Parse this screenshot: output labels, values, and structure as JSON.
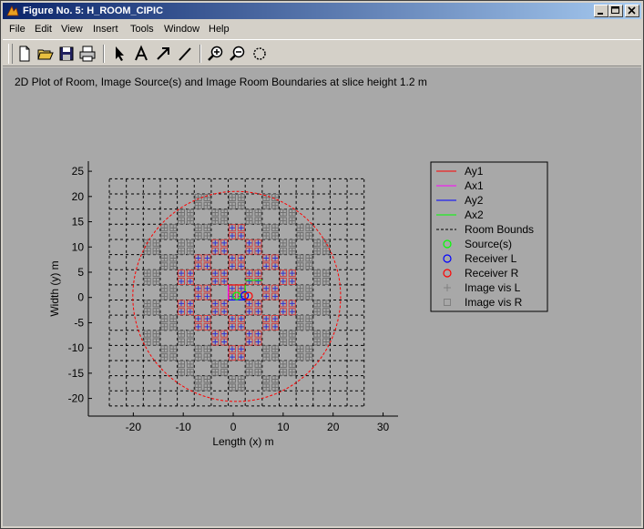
{
  "window": {
    "title": "Figure No. 5: H_ROOM_CIPIC",
    "title_color": "#0a246a"
  },
  "menu": [
    "File",
    "Edit",
    "View",
    "Insert",
    "Tools",
    "Window",
    "Help"
  ],
  "toolbar": {
    "tools": [
      "new-file-icon",
      "open-folder-icon",
      "save-icon",
      "print-icon",
      "select-arrow-icon",
      "insert-text-icon",
      "insert-arrow-icon",
      "insert-line-icon",
      "zoom-in-icon",
      "zoom-out-icon",
      "rotate-icon"
    ]
  },
  "figure": {
    "background": "#a8a8a8"
  },
  "chart_data": {
    "type": "scatter",
    "title": "2D Plot of Room, Image Source(s) and Image Room Boundaries at slice height 1.2 m",
    "xlabel": "Length (x) m",
    "ylabel": "Width (y) m",
    "xlim": [
      -29,
      33
    ],
    "ylim": [
      -23.5,
      27
    ],
    "xticks": [
      -20,
      -10,
      0,
      10,
      20,
      30
    ],
    "yticks": [
      -20,
      -15,
      -10,
      -5,
      0,
      5,
      10,
      15,
      20,
      25
    ],
    "grid": false,
    "legend_position": "outside-right",
    "legend": [
      {
        "label": "Ay1",
        "style": "line",
        "color": "#ff0000"
      },
      {
        "label": "Ax1",
        "style": "line",
        "color": "#ff00ff"
      },
      {
        "label": "Ay2",
        "style": "line",
        "color": "#0000ff"
      },
      {
        "label": "Ax2",
        "style": "line",
        "color": "#00ff00"
      },
      {
        "label": "Room Bounds",
        "style": "dashed",
        "color": "#000000"
      },
      {
        "label": "Source(s)",
        "style": "circle",
        "color": "#00ff00"
      },
      {
        "label": "Receiver L",
        "style": "circle",
        "color": "#0000ff"
      },
      {
        "label": "Receiver R",
        "style": "circle",
        "color": "#ff0000"
      },
      {
        "label": "Image vis L",
        "style": "plus",
        "color": "#808080"
      },
      {
        "label": "Image vis R",
        "style": "square",
        "color": "#808080"
      }
    ],
    "room_bounds_x": [
      -24.8,
      -21.4,
      -18,
      -14.6,
      -11.2,
      -7.8,
      -4.4,
      -1,
      2.4,
      5.8,
      9.2,
      12.6,
      16,
      19.4,
      22.8,
      26.2
    ],
    "room_bounds_y": [
      -21.5,
      -18.5,
      -15.5,
      -12.5,
      -9.5,
      -6.5,
      -3.5,
      -0.5,
      2.5,
      5.5,
      8.5,
      11.5,
      14.5,
      17.5,
      20.5,
      23.5
    ],
    "circle": {
      "center": [
        0.7,
        0.2
      ],
      "radius": 20.8,
      "color": "#ff0000"
    },
    "sources": [
      {
        "x": 0.7,
        "y": 0.3
      }
    ],
    "receivers": [
      {
        "name": "Receiver L",
        "x": 2.3,
        "y": 0.4
      },
      {
        "name": "Receiver R",
        "x": 3.1,
        "y": 0.3
      }
    ]
  }
}
